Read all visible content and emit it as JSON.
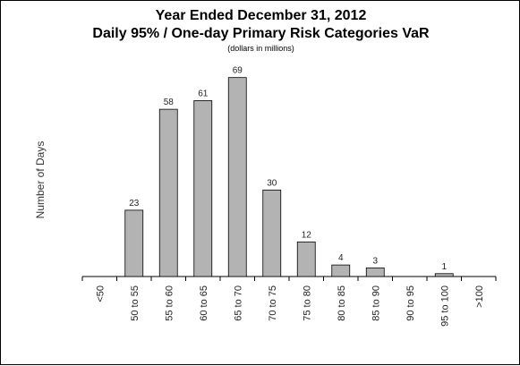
{
  "chart_data": {
    "type": "bar",
    "title": "Year Ended December 31, 2012",
    "subtitle": "Daily 95% / One-day Primary Risk Categories VaR",
    "note": "(dollars in millions)",
    "xlabel": "",
    "ylabel": "Number of Days",
    "categories": [
      "<50",
      "50 to 55",
      "55 to 60",
      "60 to 65",
      "65 to 70",
      "70 to 75",
      "75 to 80",
      "80 to 85",
      "85 to 90",
      "90 to 95",
      "95 to 100",
      ">100"
    ],
    "values": [
      0,
      23,
      58,
      61,
      69,
      30,
      12,
      4,
      3,
      0,
      1,
      0
    ],
    "data_labels": [
      "",
      "23",
      "58",
      "61",
      "69",
      "30",
      "12",
      "4",
      "3",
      "",
      "1",
      ""
    ],
    "ylim": [
      0,
      72
    ],
    "grid": false,
    "legend": "none",
    "bar_color": "#b3b3b3",
    "bar_edge_color": "#000000"
  }
}
